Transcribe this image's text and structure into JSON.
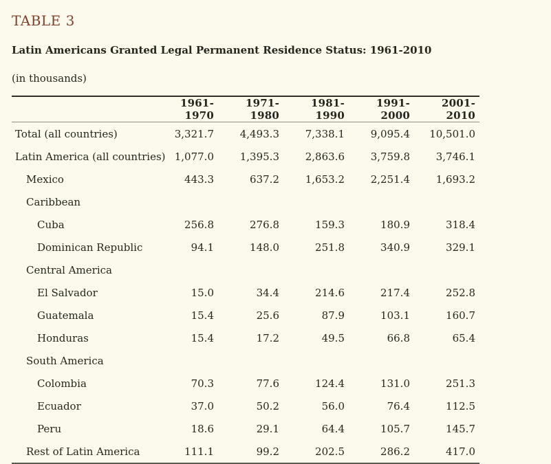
{
  "header": {
    "table_label": "TABLE 3",
    "title": "Latin Americans Granted Legal Permanent Residence Status: 1961-2010",
    "subtitle": "(in thousands)"
  },
  "colors": {
    "background": "#FCFAEC",
    "accent": "#7F3F2B",
    "text": "#26261E",
    "rule_top": "#2E2E26",
    "rule_header": "#8F8F85",
    "rule_bottom": "#5C5C52"
  },
  "chart_data": {
    "type": "table",
    "title": "Latin Americans Granted Legal Permanent Residence Status: 1961-2010",
    "units": "thousands",
    "columns": [
      "1961-1970",
      "1971-1980",
      "1981-1990",
      "1991-2000",
      "2001-2010"
    ],
    "rows": [
      {
        "label": "Total (all countries)",
        "indent": 0,
        "values": [
          "3,321.7",
          "4,493.3",
          "7,338.1",
          "9,095.4",
          "10,501.0"
        ]
      },
      {
        "label": "Latin America (all countries)",
        "indent": 0,
        "values": [
          "1,077.0",
          "1,395.3",
          "2,863.6",
          "3,759.8",
          "3,746.1"
        ]
      },
      {
        "label": "Mexico",
        "indent": 1,
        "values": [
          "443.3",
          "637.2",
          "1,653.2",
          "2,251.4",
          "1,693.2"
        ]
      },
      {
        "label": "Caribbean",
        "indent": 1,
        "values": [
          "",
          "",
          "",
          "",
          ""
        ]
      },
      {
        "label": "Cuba",
        "indent": 2,
        "values": [
          "256.8",
          "276.8",
          "159.3",
          "180.9",
          "318.4"
        ]
      },
      {
        "label": "Dominican Republic",
        "indent": 2,
        "values": [
          "94.1",
          "148.0",
          "251.8",
          "340.9",
          "329.1"
        ]
      },
      {
        "label": "Central America",
        "indent": 1,
        "values": [
          "",
          "",
          "",
          "",
          ""
        ]
      },
      {
        "label": "El Salvador",
        "indent": 2,
        "values": [
          "15.0",
          "34.4",
          "214.6",
          "217.4",
          "252.8"
        ]
      },
      {
        "label": "Guatemala",
        "indent": 2,
        "values": [
          "15.4",
          "25.6",
          "87.9",
          "103.1",
          "160.7"
        ]
      },
      {
        "label": "Honduras",
        "indent": 2,
        "values": [
          "15.4",
          "17.2",
          "49.5",
          "66.8",
          "65.4"
        ]
      },
      {
        "label": "South America",
        "indent": 1,
        "values": [
          "",
          "",
          "",
          "",
          ""
        ]
      },
      {
        "label": "Colombia",
        "indent": 2,
        "values": [
          "70.3",
          "77.6",
          "124.4",
          "131.0",
          "251.3"
        ]
      },
      {
        "label": "Ecuador",
        "indent": 2,
        "values": [
          "37.0",
          "50.2",
          "56.0",
          "76.4",
          "112.5"
        ]
      },
      {
        "label": "Peru",
        "indent": 2,
        "values": [
          "18.6",
          "29.1",
          "64.4",
          "105.7",
          "145.7"
        ]
      },
      {
        "label": "Rest of Latin America",
        "indent": 1,
        "values": [
          "111.1",
          "99.2",
          "202.5",
          "286.2",
          "417.0"
        ]
      }
    ]
  }
}
